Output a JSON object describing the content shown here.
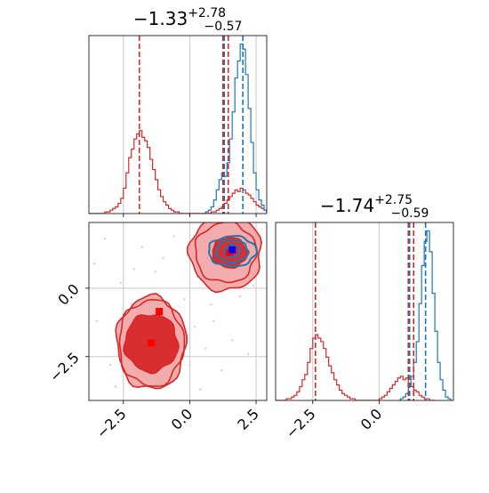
{
  "chart_data": {
    "type": "corner",
    "panels": [
      {
        "id": "hist-param1",
        "kind": "histogram",
        "title": {
          "center": "-1.33",
          "sup": "+2.78",
          "sub": "-0.57"
        },
        "xlim": [
          -3.8,
          2.9
        ],
        "xgrid": [
          -2.5,
          0.0,
          2.5
        ],
        "show_tick_labels": false,
        "red_hist": {
          "edges_start": -3.8,
          "bin_width": 0.1,
          "counts": [
            0,
            0,
            0,
            0,
            0,
            0,
            1,
            1,
            2,
            3,
            4,
            6,
            9,
            15,
            24,
            33,
            38,
            44,
            47,
            49,
            45,
            43,
            39,
            32,
            26,
            20,
            14,
            10,
            7,
            5,
            3,
            2,
            1,
            1,
            0,
            0,
            0,
            0,
            0,
            0,
            0,
            0,
            0,
            0,
            0,
            0,
            1,
            1,
            2,
            3,
            4,
            6,
            8,
            10,
            12,
            14,
            13,
            15,
            14,
            12,
            11,
            9,
            7,
            5,
            4,
            3,
            2,
            1
          ]
        },
        "blue_hist": {
          "edges_start": 0.5,
          "bin_width": 0.1,
          "counts": [
            0,
            1,
            2,
            4,
            8,
            14,
            20,
            24,
            22,
            30,
            44,
            60,
            80,
            90,
            100,
            97,
            82,
            62,
            42,
            24,
            14,
            8,
            5,
            2,
            1
          ]
        },
        "red_vlines": [
          -1.9,
          1.25,
          1.45
        ],
        "blue_vlines": [
          1.3,
          2.0
        ]
      },
      {
        "id": "hist-param2",
        "kind": "histogram",
        "title": {
          "center": "-1.74",
          "sup": "+2.75",
          "sub": "-0.59"
        },
        "xlim": [
          -3.9,
          2.8
        ],
        "xgrid": [
          -2.5,
          0.0
        ],
        "xticks": [
          "-2.5",
          "0.0"
        ],
        "xtick_values": [
          -2.5,
          0.0
        ],
        "red_hist": {
          "edges_start": -3.9,
          "bin_width": 0.1,
          "counts": [
            0,
            0,
            0,
            0,
            1,
            1,
            2,
            3,
            5,
            8,
            12,
            15,
            22,
            30,
            36,
            38,
            36,
            34,
            30,
            25,
            20,
            16,
            12,
            9,
            6,
            4,
            3,
            2,
            1,
            1,
            0,
            0,
            0,
            0,
            0,
            0,
            0,
            0,
            0,
            1,
            2,
            3,
            5,
            7,
            9,
            11,
            13,
            14,
            12,
            13,
            10,
            8,
            6,
            5,
            3,
            2,
            1,
            1,
            0,
            0
          ]
        },
        "blue_hist": {
          "edges_start": 0.7,
          "bin_width": 0.1,
          "counts": [
            0,
            1,
            2,
            4,
            8,
            14,
            22,
            34,
            56,
            78,
            92,
            98,
            86,
            62,
            40,
            22,
            12,
            6,
            2,
            1
          ]
        },
        "red_vlines": [
          -2.4,
          1.1,
          1.3
        ],
        "blue_vlines": [
          1.15,
          1.75
        ]
      },
      {
        "id": "joint-param1-param2",
        "kind": "contour2d",
        "xlim": [
          -3.8,
          2.9
        ],
        "ylim": [
          -4.1,
          2.4
        ],
        "xticks": [
          "-2.5",
          "0.0",
          "2.5"
        ],
        "xtick_values": [
          -2.5,
          0.0,
          2.5
        ],
        "yticks": [
          "0.0",
          "-2.5"
        ],
        "ytick_values": [
          0.0,
          -2.5
        ],
        "red_markers": [
          [
            -1.15,
            -0.85
          ],
          [
            -1.45,
            -2.0
          ],
          [
            1.5,
            1.3
          ]
        ],
        "blue_marker": [
          1.6,
          1.4
        ],
        "red_contours": [
          {
            "cx": -1.45,
            "cy": -2.0,
            "rx": 1.3,
            "ry": 1.7,
            "role": "outer"
          },
          {
            "cx": -1.45,
            "cy": -2.0,
            "rx": 1.22,
            "ry": 1.58,
            "role": "outer2"
          },
          {
            "cx": -1.45,
            "cy": -2.0,
            "rx": 1.0,
            "ry": 1.05,
            "role": "inner"
          },
          {
            "cx": 1.35,
            "cy": 1.3,
            "rx": 1.35,
            "ry": 1.4,
            "role": "outer"
          },
          {
            "cx": 1.35,
            "cy": 1.3,
            "rx": 1.15,
            "ry": 1.1,
            "role": "outer2"
          },
          {
            "cx": 1.5,
            "cy": 1.3,
            "rx": 0.65,
            "ry": 0.55,
            "role": "inner"
          }
        ],
        "blue_contours": [
          {
            "cx": 1.6,
            "cy": 1.35,
            "rx": 0.9,
            "ry": 0.55
          },
          {
            "cx": 1.6,
            "cy": 1.35,
            "rx": 0.6,
            "ry": 0.4
          },
          {
            "cx": 1.6,
            "cy": 1.35,
            "rx": 0.3,
            "ry": 0.22
          }
        ],
        "scatter": [
          [
            -3.2,
            1.8
          ],
          [
            -2.1,
            0.7
          ],
          [
            -0.6,
            1.9
          ],
          [
            0.3,
            0.4
          ],
          [
            -1.3,
            0.6
          ],
          [
            0.8,
            -0.6
          ],
          [
            0.2,
            -1.4
          ],
          [
            0.6,
            -2.2
          ],
          [
            -0.5,
            -3.2
          ],
          [
            -2.8,
            -3.6
          ],
          [
            -3.5,
            -1.2
          ],
          [
            -1.0,
            1.1
          ],
          [
            0.9,
            -1.2
          ],
          [
            1.9,
            -0.3
          ],
          [
            -0.2,
            -0.4
          ],
          [
            -2.6,
            0.2
          ],
          [
            1.2,
            -3.0
          ],
          [
            -1.8,
            1.5
          ],
          [
            0.5,
            1.6
          ],
          [
            -3.0,
            -2.8
          ],
          [
            2.4,
            0.1
          ],
          [
            -0.8,
            -0.6
          ],
          [
            0.0,
            -2.8
          ],
          [
            -2.2,
            -0.6
          ],
          [
            1.6,
            -1.9
          ],
          [
            -3.6,
            0.9
          ],
          [
            0.4,
            -3.7
          ],
          [
            2.2,
            -2.4
          ]
        ]
      }
    ]
  },
  "colors": {
    "red": "#d62728",
    "blue": "#1f77b4",
    "red_fill_light": "#f2a3a4",
    "red_fill_dark": "#d62728",
    "grid": "#c8c8c8"
  }
}
